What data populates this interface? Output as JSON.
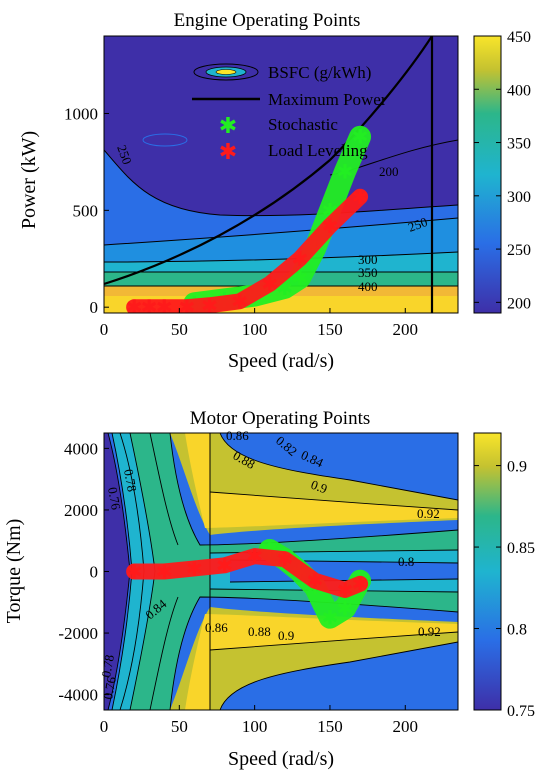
{
  "colors": {
    "viridis_dark": "#3e2fa8",
    "blue": "#2a6ee6",
    "cyan": "#1fb4cf",
    "green": "#2cb68a",
    "yellow": "#f9d52a",
    "gold": "#f2b836",
    "stochastic": "#22ee22",
    "load_leveling": "#ff1a1a",
    "max_power": "#000000"
  },
  "chart_data": [
    {
      "type": "contour",
      "title": "Engine Operating Points",
      "xlabel": "Speed (rad/s)",
      "ylabel": "Power (kW)",
      "xlim": [
        0,
        235
      ],
      "ylim": [
        -30,
        1400
      ],
      "xticks": [
        0,
        50,
        100,
        150,
        200
      ],
      "yticks": [
        0,
        500,
        1000
      ],
      "colorbar": {
        "min": 190,
        "max": 450,
        "ticks": [
          200,
          250,
          300,
          350,
          400,
          450
        ]
      },
      "contour_labels": [
        "250",
        "200",
        "250",
        "300",
        "350",
        "400",
        "250"
      ],
      "legend": [
        "BSFC (g/kWh)",
        "Maximum Power",
        "Stochastic",
        "Load Leveling"
      ],
      "max_power_curve": {
        "x": [
          0,
          40,
          80,
          120,
          160,
          200,
          220,
          220
        ],
        "y": [
          150,
          250,
          400,
          600,
          850,
          1200,
          1400,
          0
        ]
      },
      "series": [
        {
          "name": "Stochastic",
          "x": [
            60,
            80,
            100,
            120,
            130,
            140,
            150,
            160,
            170
          ],
          "y": [
            20,
            40,
            60,
            100,
            150,
            300,
            500,
            700,
            880
          ]
        },
        {
          "name": "Load Leveling",
          "x": [
            20,
            30,
            40,
            55,
            70,
            90,
            110,
            130,
            150,
            170
          ],
          "y": [
            0,
            0,
            0,
            0,
            10,
            30,
            120,
            250,
            420,
            570
          ]
        }
      ]
    },
    {
      "type": "contour",
      "title": "Motor Operating Points",
      "xlabel": "Speed (rad/s)",
      "ylabel": "Torque (Nm)",
      "xlim": [
        0,
        235
      ],
      "ylim": [
        -4500,
        4500
      ],
      "xticks": [
        0,
        50,
        100,
        150,
        200
      ],
      "yticks": [
        4000,
        2000,
        0,
        -2000,
        -4000
      ],
      "colorbar": {
        "min": 0.75,
        "max": 0.92,
        "ticks": [
          0.9,
          0.85,
          0.8,
          0.75
        ]
      },
      "contour_labels": [
        "0.86",
        "0.88",
        "0.82",
        "0.84",
        "0.9",
        "0.78",
        "0.76",
        "0.92",
        "0.8",
        "0.84",
        "0.86",
        "0.88",
        "0.9",
        "0.92",
        "0.78",
        "0.76"
      ],
      "series": [
        {
          "name": "Stochastic",
          "x": [
            110,
            120,
            130,
            140,
            150,
            160,
            170
          ],
          "y": [
            700,
            400,
            0,
            -500,
            -1500,
            -1200,
            -300
          ]
        },
        {
          "name": "Load Leveling",
          "x": [
            20,
            40,
            60,
            80,
            100,
            120,
            140,
            160,
            170
          ],
          "y": [
            0,
            0,
            100,
            200,
            500,
            400,
            -300,
            -600,
            -400
          ]
        }
      ]
    }
  ]
}
